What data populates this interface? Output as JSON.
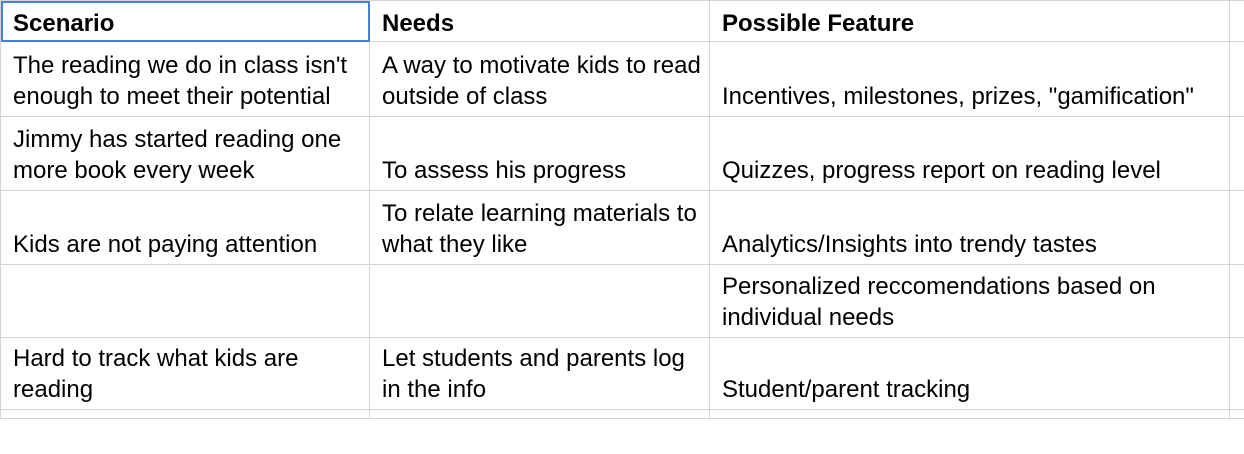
{
  "header": {
    "scenario": "Scenario",
    "needs": "Needs",
    "feature": "Possible Feature"
  },
  "rows": [
    {
      "scenario": "The reading we do in class isn't enough to meet their potential",
      "needs": "A way to motivate kids to read outside of class",
      "feature": "Incentives, milestones, prizes, \"gamification\""
    },
    {
      "scenario": "Jimmy has started reading one more book every week",
      "needs": "To assess his progress",
      "feature": "Quizzes, progress report on reading level"
    },
    {
      "scenario": "Kids are not paying attention",
      "needs": "To relate learning materials to what they like",
      "feature": "Analytics/Insights into trendy tastes"
    },
    {
      "scenario": "",
      "needs": "",
      "feature": "Personalized reccomendations based on individual needs"
    },
    {
      "scenario": "Hard to track what kids are reading",
      "needs": "Let students and parents log in the info",
      "feature": "Student/parent tracking"
    }
  ],
  "colors": {
    "gridline": "#d4d4d4",
    "selection": "#4a7fd4"
  }
}
